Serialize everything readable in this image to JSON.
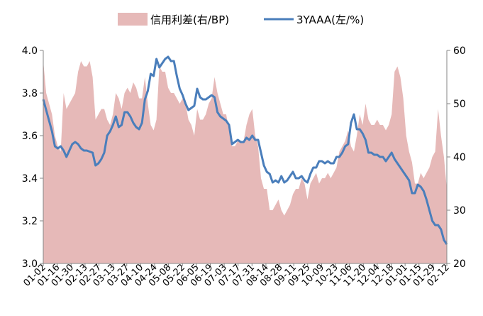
{
  "chart_data": {
    "type": "area+line",
    "legend": [
      {
        "name": "信用利差(右/BP)",
        "kind": "area",
        "color": "#E6B9B8"
      },
      {
        "name": "3YAAA(左/%)",
        "kind": "line",
        "color": "#4A7EBB"
      }
    ],
    "legend_position": "top-center",
    "colors": {
      "area": "#E6B9B8",
      "line": "#4A7EBB"
    },
    "y_left": {
      "min": 3.0,
      "max": 4.0,
      "ticks": [
        "3.0",
        "3.2",
        "3.4",
        "3.6",
        "3.8",
        "4.0"
      ]
    },
    "y_right": {
      "min": 20,
      "max": 60,
      "ticks": [
        "20",
        "30",
        "40",
        "50",
        "60"
      ]
    },
    "x_tick_labels": [
      "01-02",
      "01-16",
      "01-30",
      "02-13",
      "02-27",
      "03-13",
      "03-27",
      "04-10",
      "04-24",
      "05-08",
      "05-22",
      "06-05",
      "06-19",
      "07-03",
      "07-17",
      "07-31",
      "08-14",
      "08-28",
      "09-11",
      "09-25",
      "10-09",
      "10-23",
      "11-06",
      "11-20",
      "12-04",
      "12-18",
      "01-01",
      "01-15",
      "01-29",
      "02-12"
    ],
    "grid": false,
    "n_points": 140,
    "series": [
      {
        "name": "3YAAA(左/%)",
        "axis": "left",
        "points": [
          [
            0,
            3.77
          ],
          [
            2,
            3.67
          ],
          [
            3,
            3.62
          ],
          [
            4,
            3.55
          ],
          [
            5,
            3.54
          ],
          [
            6,
            3.55
          ],
          [
            7,
            3.53
          ],
          [
            8,
            3.5
          ],
          [
            9,
            3.53
          ],
          [
            10,
            3.56
          ],
          [
            11,
            3.57
          ],
          [
            12,
            3.56
          ],
          [
            13,
            3.54
          ],
          [
            14,
            3.53
          ],
          [
            15,
            3.53
          ],
          [
            17,
            3.52
          ],
          [
            18,
            3.46
          ],
          [
            19,
            3.47
          ],
          [
            20,
            3.49
          ],
          [
            21,
            3.52
          ],
          [
            22,
            3.6
          ],
          [
            23,
            3.62
          ],
          [
            24,
            3.65
          ],
          [
            25,
            3.69
          ],
          [
            26,
            3.64
          ],
          [
            27,
            3.65
          ],
          [
            28,
            3.71
          ],
          [
            29,
            3.71
          ],
          [
            30,
            3.69
          ],
          [
            31,
            3.66
          ],
          [
            32,
            3.64
          ],
          [
            33,
            3.63
          ],
          [
            34,
            3.66
          ],
          [
            35,
            3.77
          ],
          [
            36,
            3.81
          ],
          [
            37,
            3.89
          ],
          [
            38,
            3.88
          ],
          [
            39,
            3.96
          ],
          [
            40,
            3.92
          ],
          [
            41,
            3.94
          ],
          [
            42,
            3.96
          ],
          [
            43,
            3.97
          ],
          [
            44,
            3.95
          ],
          [
            45,
            3.95
          ],
          [
            46,
            3.88
          ],
          [
            47,
            3.82
          ],
          [
            48,
            3.79
          ],
          [
            49,
            3.75
          ],
          [
            50,
            3.72
          ],
          [
            51,
            3.73
          ],
          [
            52,
            3.74
          ],
          [
            53,
            3.82
          ],
          [
            54,
            3.78
          ],
          [
            55,
            3.77
          ],
          [
            56,
            3.77
          ],
          [
            57,
            3.78
          ],
          [
            58,
            3.79
          ],
          [
            59,
            3.78
          ],
          [
            60,
            3.71
          ],
          [
            61,
            3.69
          ],
          [
            62,
            3.68
          ],
          [
            63,
            3.67
          ],
          [
            64,
            3.65
          ],
          [
            65,
            3.56
          ],
          [
            66,
            3.57
          ],
          [
            67,
            3.58
          ],
          [
            68,
            3.57
          ],
          [
            69,
            3.57
          ],
          [
            70,
            3.59
          ],
          [
            71,
            3.58
          ],
          [
            72,
            3.6
          ],
          [
            73,
            3.58
          ],
          [
            74,
            3.58
          ],
          [
            75,
            3.52
          ],
          [
            76,
            3.46
          ],
          [
            77,
            3.43
          ],
          [
            78,
            3.42
          ],
          [
            79,
            3.38
          ],
          [
            80,
            3.39
          ],
          [
            81,
            3.38
          ],
          [
            82,
            3.41
          ],
          [
            83,
            3.38
          ],
          [
            84,
            3.39
          ],
          [
            85,
            3.41
          ],
          [
            86,
            3.43
          ],
          [
            87,
            3.4
          ],
          [
            88,
            3.4
          ],
          [
            89,
            3.41
          ],
          [
            90,
            3.39
          ],
          [
            91,
            3.38
          ],
          [
            92,
            3.42
          ],
          [
            93,
            3.45
          ],
          [
            94,
            3.45
          ],
          [
            95,
            3.48
          ],
          [
            96,
            3.48
          ],
          [
            97,
            3.47
          ],
          [
            98,
            3.48
          ],
          [
            99,
            3.47
          ],
          [
            100,
            3.47
          ],
          [
            101,
            3.5
          ],
          [
            102,
            3.5
          ],
          [
            103,
            3.52
          ],
          [
            104,
            3.55
          ],
          [
            105,
            3.56
          ],
          [
            106,
            3.66
          ],
          [
            107,
            3.7
          ],
          [
            108,
            3.63
          ],
          [
            109,
            3.63
          ],
          [
            110,
            3.61
          ],
          [
            111,
            3.58
          ],
          [
            112,
            3.52
          ],
          [
            113,
            3.52
          ],
          [
            114,
            3.51
          ],
          [
            115,
            3.51
          ],
          [
            116,
            3.5
          ],
          [
            117,
            3.5
          ],
          [
            118,
            3.48
          ],
          [
            119,
            3.5
          ],
          [
            120,
            3.52
          ],
          [
            121,
            3.49
          ],
          [
            122,
            3.47
          ],
          [
            123,
            3.45
          ],
          [
            124,
            3.43
          ],
          [
            125,
            3.41
          ],
          [
            126,
            3.39
          ],
          [
            127,
            3.33
          ],
          [
            128,
            3.33
          ],
          [
            129,
            3.37
          ],
          [
            130,
            3.36
          ],
          [
            131,
            3.34
          ],
          [
            132,
            3.3
          ],
          [
            133,
            3.25
          ],
          [
            134,
            3.2
          ],
          [
            135,
            3.18
          ],
          [
            136,
            3.18
          ],
          [
            137,
            3.16
          ],
          [
            138,
            3.11
          ],
          [
            139,
            3.09
          ]
        ]
      },
      {
        "name": "信用利差(右/BP)",
        "axis": "right",
        "points": [
          [
            0,
            58
          ],
          [
            1,
            52
          ],
          [
            2,
            50
          ],
          [
            3,
            48
          ],
          [
            4,
            44
          ],
          [
            5,
            42
          ],
          [
            6,
            41
          ],
          [
            7,
            52
          ],
          [
            8,
            49
          ],
          [
            9,
            50
          ],
          [
            10,
            51
          ],
          [
            11,
            52
          ],
          [
            12,
            56
          ],
          [
            13,
            58
          ],
          [
            14,
            57
          ],
          [
            15,
            57
          ],
          [
            16,
            58
          ],
          [
            17,
            55
          ],
          [
            18,
            47
          ],
          [
            19,
            48
          ],
          [
            20,
            49
          ],
          [
            21,
            49
          ],
          [
            22,
            47
          ],
          [
            23,
            46
          ],
          [
            24,
            48
          ],
          [
            25,
            52
          ],
          [
            26,
            51
          ],
          [
            27,
            49
          ],
          [
            28,
            52
          ],
          [
            29,
            53
          ],
          [
            30,
            52
          ],
          [
            31,
            54
          ],
          [
            32,
            53
          ],
          [
            33,
            51
          ],
          [
            34,
            51
          ],
          [
            35,
            55
          ],
          [
            36,
            50
          ],
          [
            37,
            46
          ],
          [
            38,
            45
          ],
          [
            39,
            47
          ],
          [
            40,
            57
          ],
          [
            41,
            56
          ],
          [
            42,
            56
          ],
          [
            43,
            53
          ],
          [
            44,
            52
          ],
          [
            45,
            52
          ],
          [
            46,
            51
          ],
          [
            47,
            50
          ],
          [
            48,
            51
          ],
          [
            49,
            50
          ],
          [
            50,
            47
          ],
          [
            51,
            46
          ],
          [
            52,
            44
          ],
          [
            53,
            49
          ],
          [
            54,
            47
          ],
          [
            55,
            47
          ],
          [
            56,
            48
          ],
          [
            57,
            50
          ],
          [
            58,
            51
          ],
          [
            59,
            55
          ],
          [
            60,
            52
          ],
          [
            61,
            50
          ],
          [
            62,
            48
          ],
          [
            63,
            48
          ],
          [
            64,
            45
          ],
          [
            65,
            42
          ],
          [
            66,
            42
          ],
          [
            67,
            43
          ],
          [
            68,
            43
          ],
          [
            69,
            43
          ],
          [
            70,
            46
          ],
          [
            71,
            48
          ],
          [
            72,
            49
          ],
          [
            73,
            44
          ],
          [
            74,
            42
          ],
          [
            75,
            36
          ],
          [
            76,
            34
          ],
          [
            77,
            34
          ],
          [
            78,
            30
          ],
          [
            79,
            30
          ],
          [
            80,
            31
          ],
          [
            81,
            32
          ],
          [
            82,
            30
          ],
          [
            83,
            29
          ],
          [
            84,
            30
          ],
          [
            85,
            31
          ],
          [
            86,
            33
          ],
          [
            87,
            34
          ],
          [
            88,
            34
          ],
          [
            89,
            36
          ],
          [
            90,
            35
          ],
          [
            91,
            32
          ],
          [
            92,
            35
          ],
          [
            93,
            36
          ],
          [
            94,
            37
          ],
          [
            95,
            35
          ],
          [
            96,
            36
          ],
          [
            97,
            36
          ],
          [
            98,
            37
          ],
          [
            99,
            36
          ],
          [
            100,
            37
          ],
          [
            101,
            38
          ],
          [
            102,
            41
          ],
          [
            103,
            42
          ],
          [
            104,
            43
          ],
          [
            105,
            45
          ],
          [
            106,
            42
          ],
          [
            107,
            41
          ],
          [
            108,
            44
          ],
          [
            109,
            48
          ],
          [
            110,
            46
          ],
          [
            111,
            50
          ],
          [
            112,
            47
          ],
          [
            113,
            46
          ],
          [
            114,
            46
          ],
          [
            115,
            47
          ],
          [
            116,
            46
          ],
          [
            117,
            46
          ],
          [
            118,
            45
          ],
          [
            119,
            46
          ],
          [
            120,
            48
          ],
          [
            121,
            56
          ],
          [
            122,
            57
          ],
          [
            123,
            55
          ],
          [
            124,
            51
          ],
          [
            125,
            44
          ],
          [
            126,
            41
          ],
          [
            127,
            39
          ],
          [
            128,
            35
          ],
          [
            129,
            35
          ],
          [
            130,
            37
          ],
          [
            131,
            36
          ],
          [
            132,
            37
          ],
          [
            133,
            38
          ],
          [
            134,
            40
          ],
          [
            135,
            41
          ],
          [
            136,
            49
          ],
          [
            137,
            44
          ],
          [
            138,
            40
          ],
          [
            139,
            34
          ]
        ]
      }
    ]
  }
}
